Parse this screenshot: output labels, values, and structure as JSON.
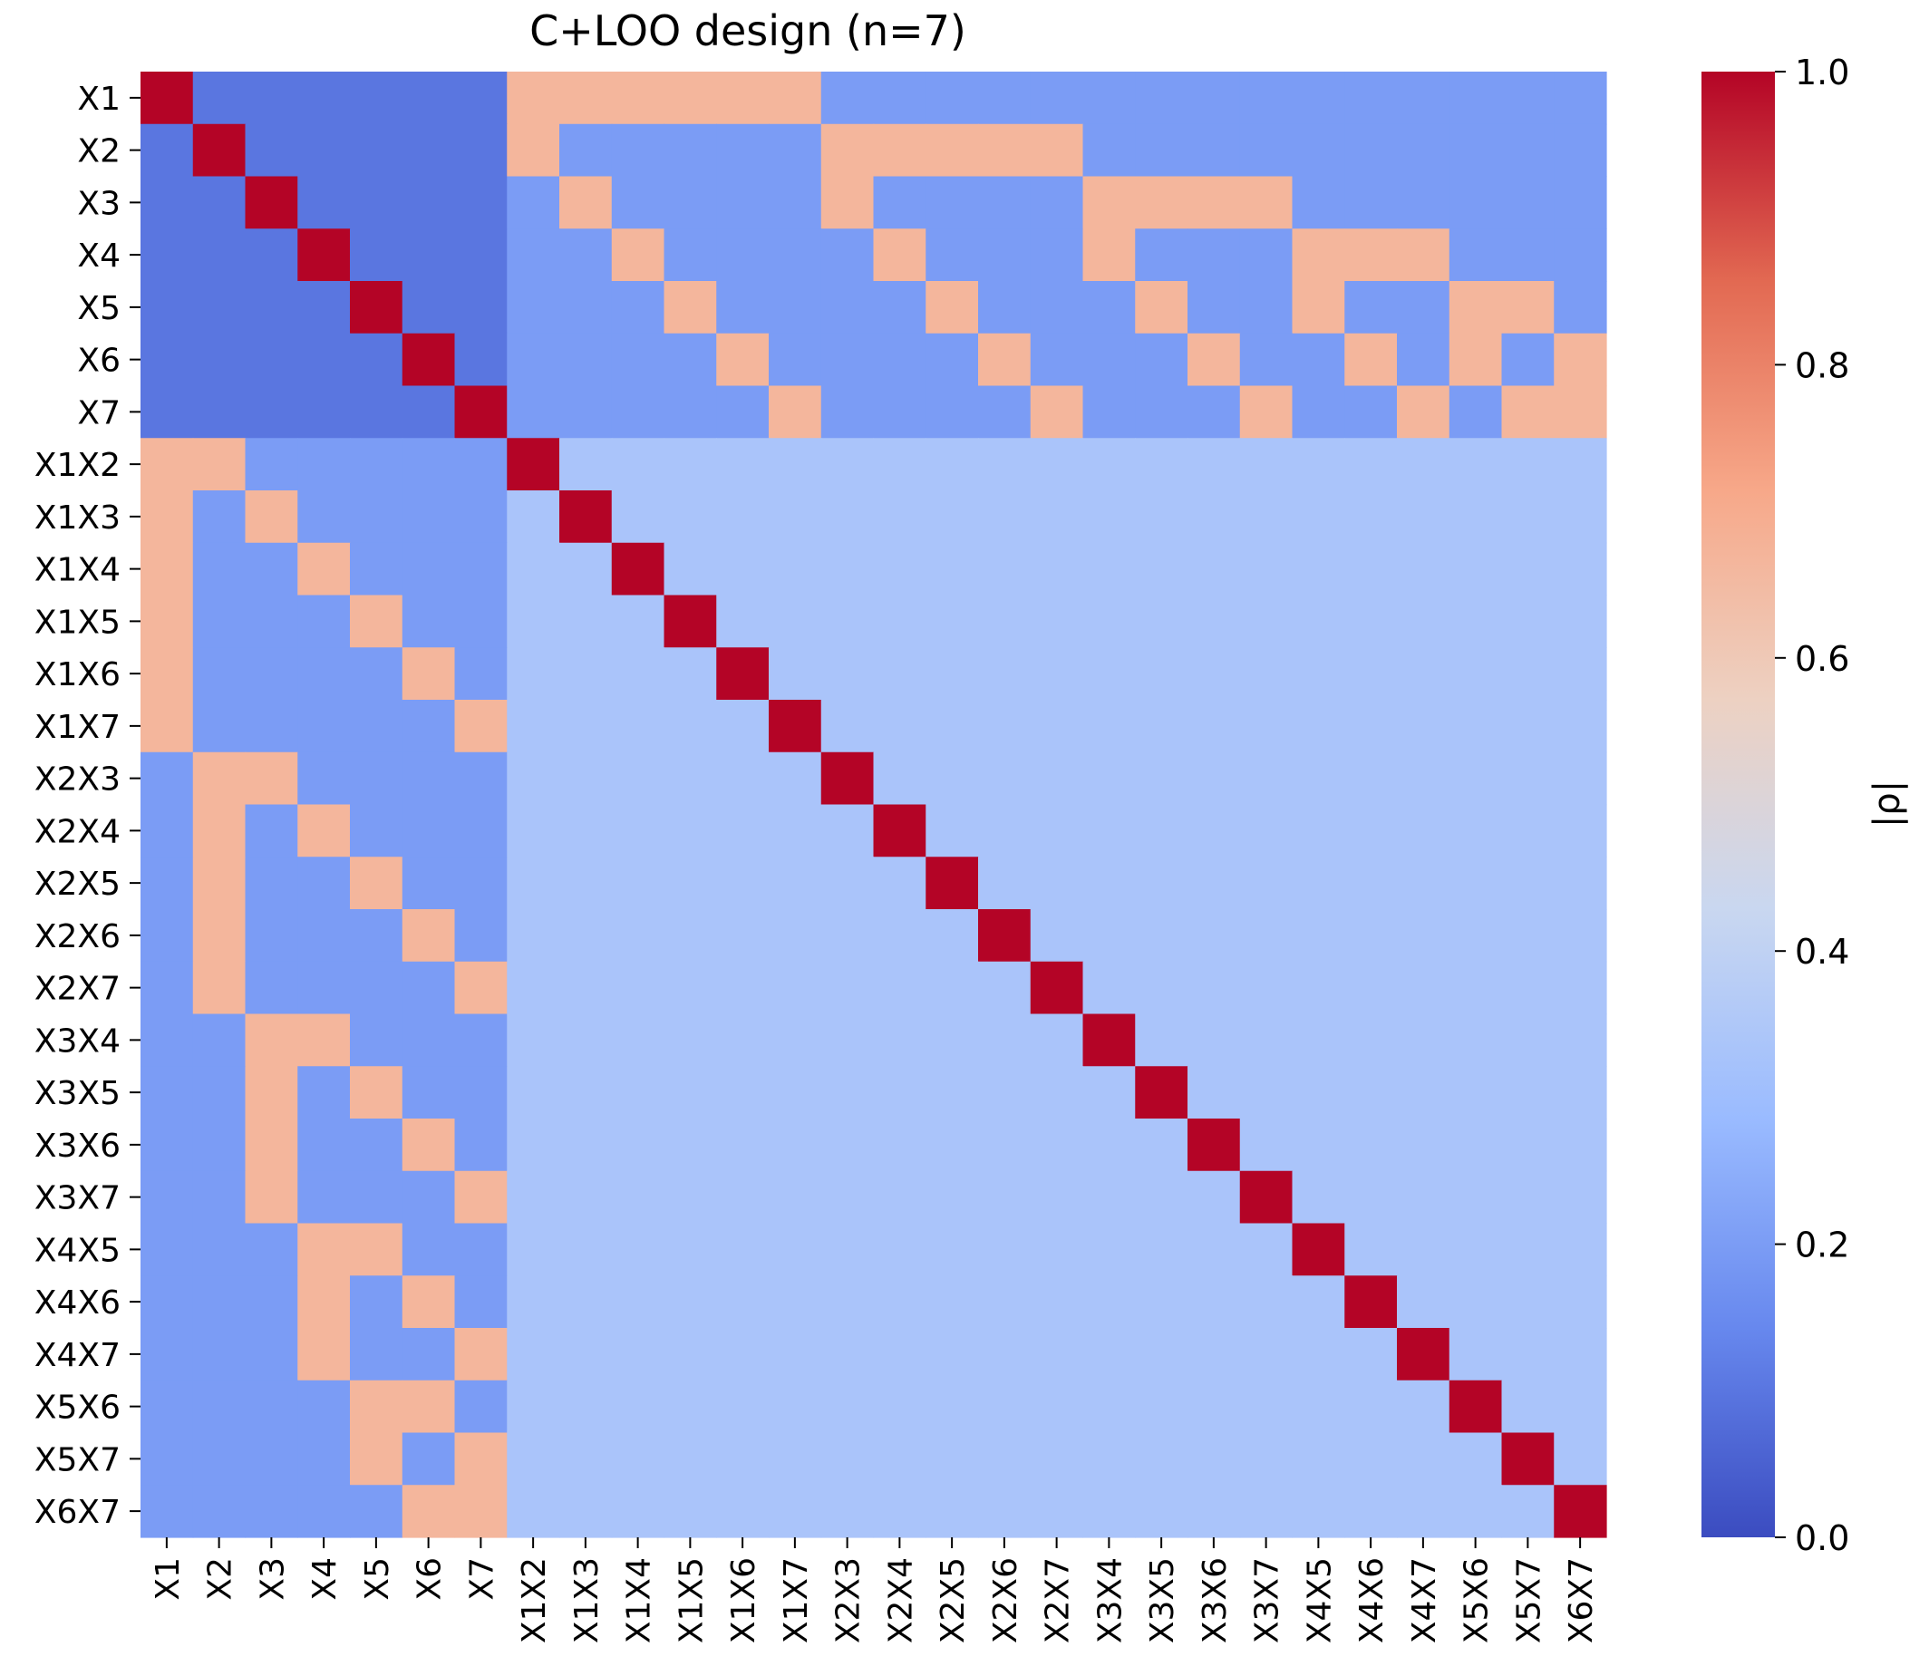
{
  "chart_data": {
    "type": "heatmap",
    "title": "C+LOO design (n=7)",
    "labels": [
      "X1",
      "X2",
      "X3",
      "X4",
      "X5",
      "X6",
      "X7",
      "X1X2",
      "X1X3",
      "X1X4",
      "X1X5",
      "X1X6",
      "X1X7",
      "X2X3",
      "X2X4",
      "X2X5",
      "X2X6",
      "X2X7",
      "X3X4",
      "X3X5",
      "X3X6",
      "X3X7",
      "X4X5",
      "X4X6",
      "X4X7",
      "X5X6",
      "X5X7",
      "X6X7"
    ],
    "value_rule": {
      "diagonal": 1.0,
      "main_effect_vs_main_effect": 0.1,
      "main_effect_in_interaction": 0.667,
      "main_effect_not_in_interaction": 0.2,
      "interaction_vs_interaction": 0.333
    },
    "colorbar": {
      "label": "|ρ|",
      "range": [
        0.0,
        1.0
      ],
      "ticks": [
        "0.0",
        "0.2",
        "0.4",
        "0.6",
        "0.8",
        "1.0"
      ],
      "colormap": "coolwarm",
      "stops": [
        "#3b4cc0",
        "#6788ee",
        "#9abbff",
        "#c9d7f0",
        "#edd1c2",
        "#f7a889",
        "#e26952",
        "#b40426"
      ]
    },
    "grid": false
  }
}
